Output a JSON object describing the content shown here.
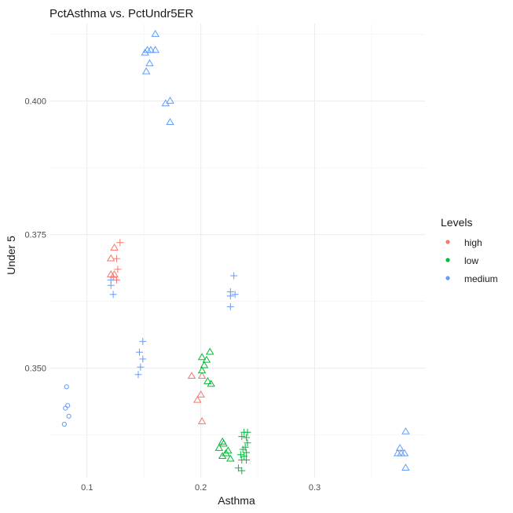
{
  "chart_data": {
    "type": "scatter",
    "title": "PctAsthma vs. PctUndr5ER",
    "xlabel": "Asthma",
    "ylabel": "Under 5",
    "xlim": [
      0.067,
      0.397
    ],
    "ylim": [
      0.3295,
      0.4145
    ],
    "x_ticks": [
      0.1,
      0.2,
      0.3
    ],
    "x_tick_labels": [
      "0.1",
      "0.2",
      "0.3"
    ],
    "y_ticks": [
      0.35,
      0.375,
      0.4
    ],
    "y_tick_labels": [
      "0.350",
      "0.375",
      "0.400"
    ],
    "grid": true,
    "legend": {
      "title": "Levels",
      "position": "right",
      "entries": [
        {
          "name": "high",
          "color": "#F8766D"
        },
        {
          "name": "low",
          "color": "#00BA38"
        },
        {
          "name": "medium",
          "color": "#619CFF"
        }
      ]
    },
    "series": [
      {
        "name": "high",
        "color": "#F8766D",
        "points": [
          {
            "x": 0.129,
            "y": 0.3735,
            "shape": "plus"
          },
          {
            "x": 0.124,
            "y": 0.3725,
            "shape": "triangle"
          },
          {
            "x": 0.121,
            "y": 0.3705,
            "shape": "triangle"
          },
          {
            "x": 0.126,
            "y": 0.3705,
            "shape": "plus"
          },
          {
            "x": 0.127,
            "y": 0.3685,
            "shape": "plus"
          },
          {
            "x": 0.121,
            "y": 0.3675,
            "shape": "triangle"
          },
          {
            "x": 0.124,
            "y": 0.3675,
            "shape": "triangle"
          },
          {
            "x": 0.123,
            "y": 0.367,
            "shape": "plus"
          },
          {
            "x": 0.126,
            "y": 0.3665,
            "shape": "plus"
          },
          {
            "x": 0.192,
            "y": 0.3485,
            "shape": "triangle"
          },
          {
            "x": 0.201,
            "y": 0.3485,
            "shape": "triangle"
          },
          {
            "x": 0.2,
            "y": 0.345,
            "shape": "triangle"
          },
          {
            "x": 0.197,
            "y": 0.344,
            "shape": "triangle"
          },
          {
            "x": 0.201,
            "y": 0.34,
            "shape": "triangle"
          }
        ]
      },
      {
        "name": "low",
        "color": "#00BA38",
        "points": [
          {
            "x": 0.208,
            "y": 0.353,
            "shape": "triangle"
          },
          {
            "x": 0.201,
            "y": 0.352,
            "shape": "triangle"
          },
          {
            "x": 0.205,
            "y": 0.3515,
            "shape": "triangle"
          },
          {
            "x": 0.203,
            "y": 0.3505,
            "shape": "triangle"
          },
          {
            "x": 0.201,
            "y": 0.3495,
            "shape": "triangle"
          },
          {
            "x": 0.206,
            "y": 0.3475,
            "shape": "triangle"
          },
          {
            "x": 0.209,
            "y": 0.347,
            "shape": "triangle"
          },
          {
            "x": 0.219,
            "y": 0.3362,
            "shape": "triangle"
          },
          {
            "x": 0.22,
            "y": 0.3358,
            "shape": "triangle"
          },
          {
            "x": 0.216,
            "y": 0.335,
            "shape": "triangle"
          },
          {
            "x": 0.224,
            "y": 0.3345,
            "shape": "triangle"
          },
          {
            "x": 0.222,
            "y": 0.334,
            "shape": "triangle"
          },
          {
            "x": 0.219,
            "y": 0.3335,
            "shape": "triangle"
          },
          {
            "x": 0.226,
            "y": 0.333,
            "shape": "triangle"
          },
          {
            "x": 0.238,
            "y": 0.338,
            "shape": "plus"
          },
          {
            "x": 0.241,
            "y": 0.338,
            "shape": "plus"
          },
          {
            "x": 0.236,
            "y": 0.3372,
            "shape": "plus"
          },
          {
            "x": 0.24,
            "y": 0.337,
            "shape": "plus"
          },
          {
            "x": 0.241,
            "y": 0.336,
            "shape": "plus"
          },
          {
            "x": 0.239,
            "y": 0.3352,
            "shape": "plus"
          },
          {
            "x": 0.237,
            "y": 0.3348,
            "shape": "plus"
          },
          {
            "x": 0.24,
            "y": 0.3342,
            "shape": "plus"
          },
          {
            "x": 0.235,
            "y": 0.3338,
            "shape": "plus"
          },
          {
            "x": 0.238,
            "y": 0.3335,
            "shape": "plus"
          },
          {
            "x": 0.236,
            "y": 0.3328,
            "shape": "plus"
          },
          {
            "x": 0.24,
            "y": 0.3328,
            "shape": "plus"
          },
          {
            "x": 0.233,
            "y": 0.3313,
            "shape": "plus"
          },
          {
            "x": 0.236,
            "y": 0.3308,
            "shape": "plus"
          }
        ]
      },
      {
        "name": "medium",
        "color": "#619CFF",
        "points": [
          {
            "x": 0.16,
            "y": 0.4125,
            "shape": "triangle"
          },
          {
            "x": 0.153,
            "y": 0.4095,
            "shape": "triangle"
          },
          {
            "x": 0.156,
            "y": 0.4095,
            "shape": "triangle"
          },
          {
            "x": 0.16,
            "y": 0.4095,
            "shape": "triangle"
          },
          {
            "x": 0.151,
            "y": 0.409,
            "shape": "triangle"
          },
          {
            "x": 0.155,
            "y": 0.407,
            "shape": "triangle"
          },
          {
            "x": 0.152,
            "y": 0.4055,
            "shape": "triangle"
          },
          {
            "x": 0.173,
            "y": 0.4,
            "shape": "triangle"
          },
          {
            "x": 0.169,
            "y": 0.3995,
            "shape": "triangle"
          },
          {
            "x": 0.173,
            "y": 0.396,
            "shape": "triangle"
          },
          {
            "x": 0.082,
            "y": 0.3465,
            "shape": "circle"
          },
          {
            "x": 0.083,
            "y": 0.343,
            "shape": "circle"
          },
          {
            "x": 0.081,
            "y": 0.3425,
            "shape": "circle"
          },
          {
            "x": 0.084,
            "y": 0.341,
            "shape": "circle"
          },
          {
            "x": 0.08,
            "y": 0.3395,
            "shape": "circle"
          },
          {
            "x": 0.121,
            "y": 0.3665,
            "shape": "plus"
          },
          {
            "x": 0.121,
            "y": 0.3655,
            "shape": "plus"
          },
          {
            "x": 0.123,
            "y": 0.3638,
            "shape": "plus"
          },
          {
            "x": 0.229,
            "y": 0.3673,
            "shape": "plus"
          },
          {
            "x": 0.226,
            "y": 0.3643,
            "shape": "plus"
          },
          {
            "x": 0.23,
            "y": 0.3638,
            "shape": "plus"
          },
          {
            "x": 0.226,
            "y": 0.3635,
            "shape": "plus"
          },
          {
            "x": 0.226,
            "y": 0.3615,
            "shape": "plus"
          },
          {
            "x": 0.149,
            "y": 0.355,
            "shape": "plus"
          },
          {
            "x": 0.146,
            "y": 0.353,
            "shape": "plus"
          },
          {
            "x": 0.149,
            "y": 0.3517,
            "shape": "plus"
          },
          {
            "x": 0.147,
            "y": 0.3502,
            "shape": "plus"
          },
          {
            "x": 0.145,
            "y": 0.3488,
            "shape": "plus"
          },
          {
            "x": 0.38,
            "y": 0.3381,
            "shape": "triangle"
          },
          {
            "x": 0.375,
            "y": 0.335,
            "shape": "triangle"
          },
          {
            "x": 0.373,
            "y": 0.334,
            "shape": "triangle"
          },
          {
            "x": 0.376,
            "y": 0.334,
            "shape": "triangle"
          },
          {
            "x": 0.379,
            "y": 0.334,
            "shape": "triangle"
          },
          {
            "x": 0.38,
            "y": 0.3313,
            "shape": "triangle"
          }
        ]
      }
    ]
  }
}
